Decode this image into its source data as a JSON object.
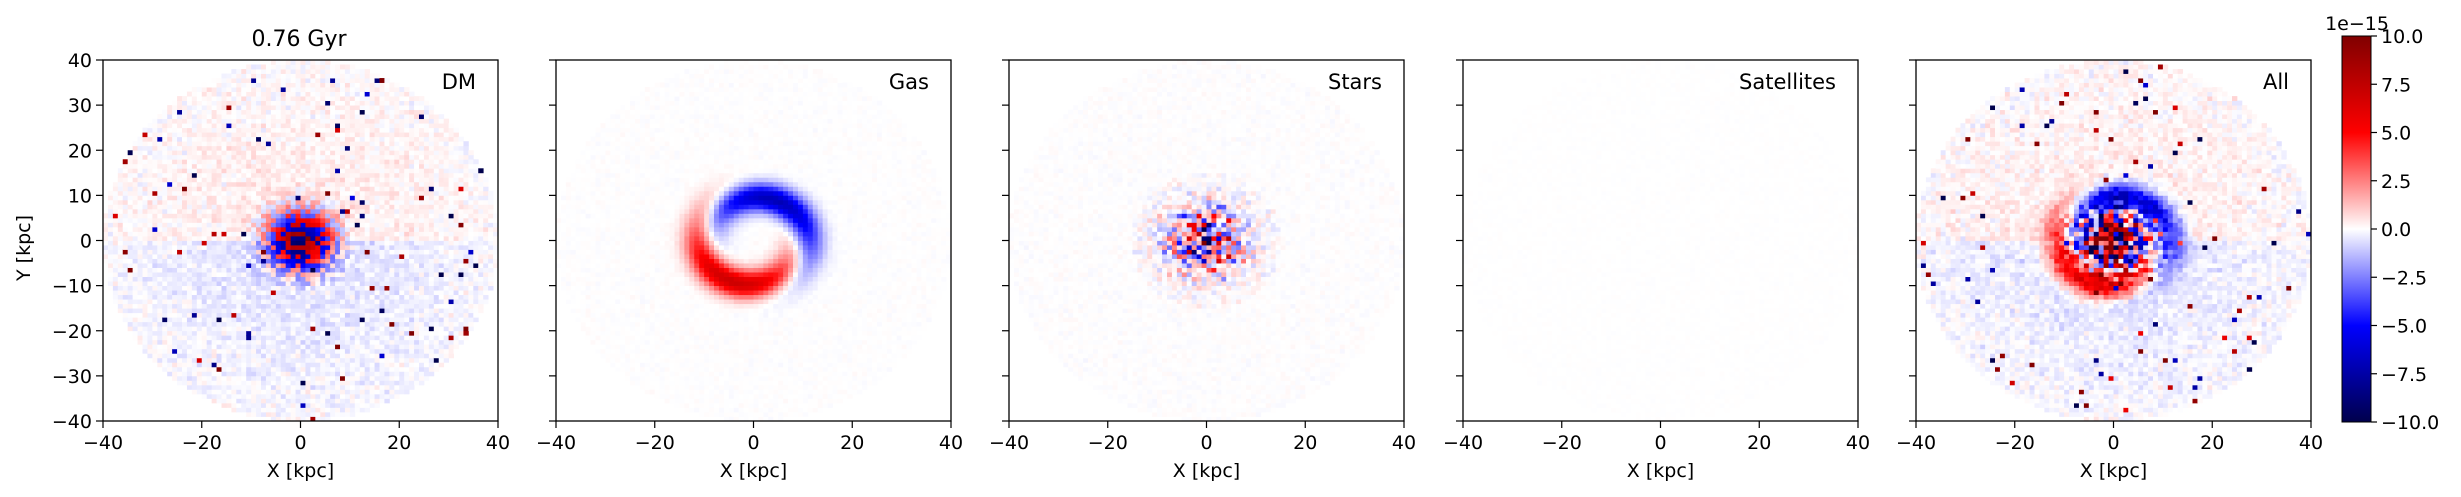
{
  "chart_data": {
    "type": "heatmap",
    "colormap": "seismic",
    "title": "0.76 Gyr",
    "xlabel": "X [kpc]",
    "ylabel": "Y [kpc]",
    "xlim": [
      -40,
      40
    ],
    "ylim": [
      -40,
      40
    ],
    "xticks": [
      -40,
      -20,
      0,
      20,
      40
    ],
    "yticks": [
      -40,
      -30,
      -20,
      -10,
      0,
      10,
      20,
      30,
      40
    ],
    "panels": [
      {
        "label": "DM",
        "component": "dm"
      },
      {
        "label": "Gas",
        "component": "gas"
      },
      {
        "label": "Stars",
        "component": "stars"
      },
      {
        "label": "Satellites",
        "component": "satellites"
      },
      {
        "label": "All",
        "component": "all"
      }
    ],
    "colorbar": {
      "vmin": -10.0,
      "vmax": 10.0,
      "ticks": [
        "10.0",
        "7.5",
        "5.0",
        "2.5",
        "0.0",
        "−2.5",
        "−5.0",
        "−7.5",
        "−10.0"
      ],
      "tick_values": [
        10,
        7.5,
        5,
        2.5,
        0,
        -2.5,
        -5,
        -7.5,
        -10
      ],
      "offset_text": "1e−15"
    },
    "colors": {
      "negative": "#00004c",
      "zero": "#ffffff",
      "positive": "#800000"
    }
  }
}
